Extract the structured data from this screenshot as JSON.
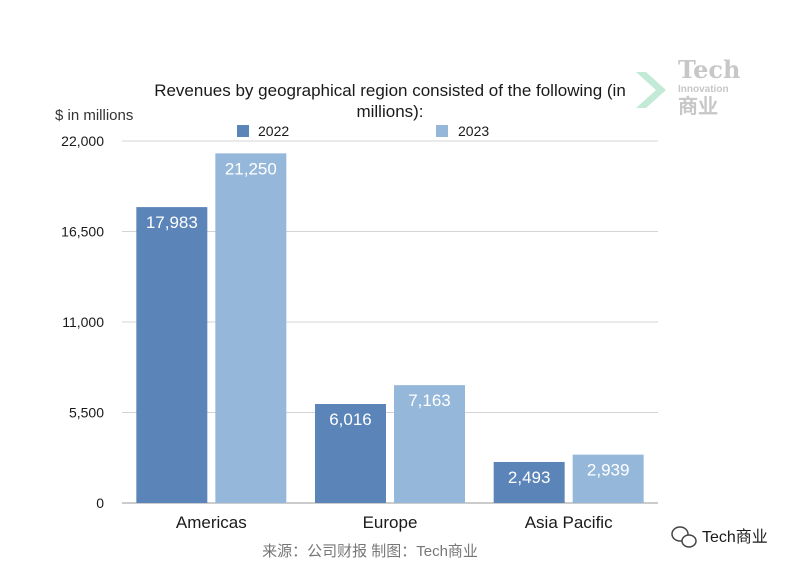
{
  "chart_data": {
    "type": "bar",
    "title_lines": [
      "Revenues by geographical region consisted of the following (in",
      "millions):"
    ],
    "ylabel": "$ in millions",
    "xlabel": "",
    "categories": [
      "Americas",
      "Europe",
      "Asia Pacific"
    ],
    "series": [
      {
        "name": "2022",
        "values": [
          17983,
          6016,
          2493
        ],
        "labels": [
          "17,983",
          "6,016",
          "2,493"
        ],
        "color": "#5b84b8"
      },
      {
        "name": "2023",
        "values": [
          21250,
          7163,
          2939
        ],
        "labels": [
          "21,250",
          "7,163",
          "2,939"
        ],
        "color": "#95b8da"
      }
    ],
    "ylim": [
      0,
      22000
    ],
    "yticks": [
      0,
      5500,
      11000,
      16500,
      22000
    ],
    "ytick_labels": [
      "0",
      "5,500",
      "11,000",
      "16,500",
      "22,000"
    ],
    "grid": true,
    "legend_position": "top"
  },
  "source": "来源：公司财报 制图：Tech商业",
  "watermark": {
    "line1": "Tech",
    "line2": "Innovation",
    "line3": "商业",
    "color": "#c7c7c7",
    "accent": "#8fd9b6"
  },
  "wechat": {
    "label": "Tech商业",
    "icon": "wechat-icon"
  }
}
